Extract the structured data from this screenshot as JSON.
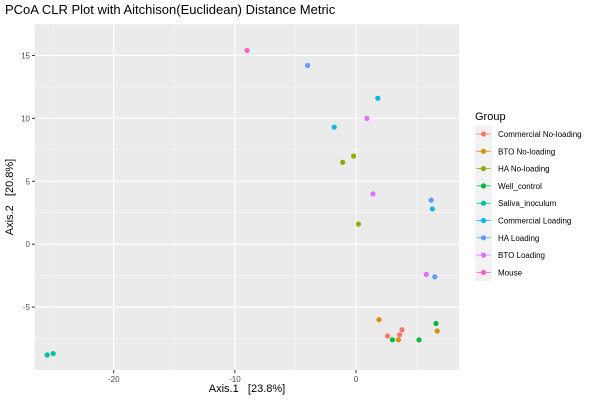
{
  "chart_data": {
    "type": "scatter",
    "title": "PCoA CLR Plot with Aitchison(Euclidean) Distance Metric",
    "xlabel": "Axis.1   [23.8%]",
    "ylabel": "Axis.2   [20.8%]",
    "xlim": [
      -26.5,
      8.5
    ],
    "ylim": [
      -10,
      17.5
    ],
    "x_ticks": [
      -20,
      -10,
      0
    ],
    "y_ticks": [
      -5,
      0,
      5,
      10,
      15
    ],
    "x_tick_labels": [
      "-20",
      "-10",
      "0"
    ],
    "y_tick_labels": [
      "-5",
      "0",
      "5",
      "10",
      "15"
    ],
    "grid": true,
    "background": "#EBEBEB",
    "legend": {
      "title": "Group",
      "position": "right"
    },
    "series": [
      {
        "name": "Commercial No-loading",
        "color": "#F8766D",
        "points": [
          [
            2.6,
            -7.3
          ],
          [
            3.6,
            -7.2
          ],
          [
            3.8,
            -6.8
          ]
        ]
      },
      {
        "name": "BTO No-loading",
        "color": "#D39200",
        "points": [
          [
            1.9,
            -6.0
          ],
          [
            3.5,
            -7.6
          ],
          [
            6.7,
            -6.9
          ]
        ]
      },
      {
        "name": "HA No-loading",
        "color": "#93AA00",
        "points": [
          [
            -0.2,
            7.0
          ],
          [
            -1.1,
            6.5
          ],
          [
            0.2,
            1.6
          ]
        ]
      },
      {
        "name": "Well_control",
        "color": "#00BA38",
        "points": [
          [
            3.0,
            -7.6
          ],
          [
            5.2,
            -7.6
          ],
          [
            6.6,
            -6.3
          ]
        ]
      },
      {
        "name": "Saliva_inoculum",
        "color": "#00C19F",
        "points": [
          [
            -25.5,
            -8.8
          ],
          [
            -25.0,
            -8.7
          ]
        ]
      },
      {
        "name": "Commercial Loading",
        "color": "#00B9E3",
        "points": [
          [
            -1.8,
            9.3
          ],
          [
            1.8,
            11.6
          ],
          [
            6.3,
            2.8
          ]
        ]
      },
      {
        "name": "HA Loading",
        "color": "#619CFF",
        "points": [
          [
            -4.0,
            14.2
          ],
          [
            6.2,
            3.5
          ],
          [
            6.5,
            -2.6
          ]
        ]
      },
      {
        "name": "BTO Loading",
        "color": "#DB72FB",
        "points": [
          [
            0.9,
            10.0
          ],
          [
            1.4,
            4.0
          ],
          [
            5.8,
            -2.4
          ]
        ]
      },
      {
        "name": "Mouse",
        "color": "#FF61C3",
        "points": [
          [
            -9.0,
            15.4
          ]
        ]
      }
    ]
  }
}
